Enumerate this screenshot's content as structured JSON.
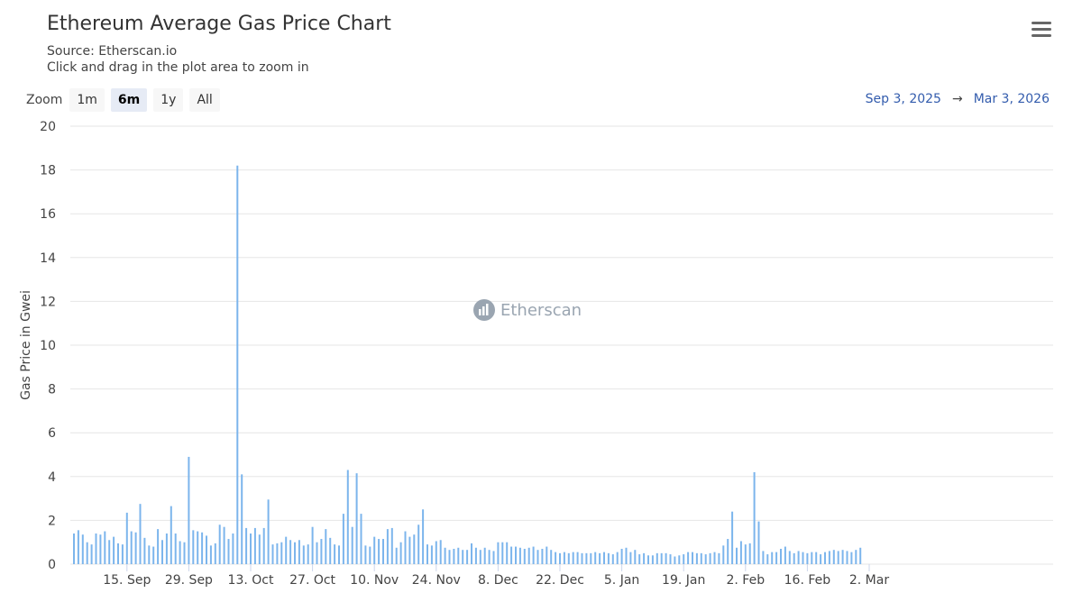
{
  "title": "Ethereum Average Gas Price Chart",
  "subtitle_source": "Source: Etherscan.io",
  "subtitle_hint": "Click and drag in the plot area to zoom in",
  "zoom": {
    "label": "Zoom",
    "buttons": [
      "1m",
      "6m",
      "1y",
      "All"
    ],
    "active": "6m"
  },
  "range": {
    "from": "Sep 3, 2025",
    "arrow": "→",
    "to": "Mar 3, 2026"
  },
  "watermark": "Etherscan",
  "colors": {
    "bar": "#7cb5ec",
    "grid": "#e6e6e6",
    "range_text": "#335cad"
  },
  "chart_data": {
    "type": "bar",
    "ylabel": "Gas Price in Gwei",
    "ylim": [
      0,
      20
    ],
    "yticks": [
      0,
      2,
      4,
      6,
      8,
      10,
      12,
      14,
      16,
      18,
      20
    ],
    "x_start": "2025-09-03",
    "xticks": [
      {
        "label": "15. Sep",
        "date": "2025-09-15"
      },
      {
        "label": "29. Sep",
        "date": "2025-09-29"
      },
      {
        "label": "13. Oct",
        "date": "2025-10-13"
      },
      {
        "label": "27. Oct",
        "date": "2025-10-27"
      },
      {
        "label": "10. Nov",
        "date": "2025-11-10"
      },
      {
        "label": "24. Nov",
        "date": "2025-11-24"
      },
      {
        "label": "8. Dec",
        "date": "2025-12-08"
      },
      {
        "label": "22. Dec",
        "date": "2025-12-22"
      },
      {
        "label": "5. Jan",
        "date": "2026-01-05"
      },
      {
        "label": "19. Jan",
        "date": "2026-01-19"
      },
      {
        "label": "2. Feb",
        "date": "2026-02-02"
      },
      {
        "label": "16. Feb",
        "date": "2026-02-16"
      },
      {
        "label": "2. Mar",
        "date": "2026-03-02"
      }
    ],
    "series": [
      {
        "values": [
          1.4,
          1.55,
          1.35,
          1.0,
          0.9,
          1.4,
          1.35,
          1.5,
          1.1,
          1.25,
          0.95,
          0.9,
          2.35,
          1.5,
          1.45,
          2.75,
          1.2,
          0.85,
          0.8,
          1.6,
          1.1,
          1.4,
          2.65,
          1.4,
          1.05,
          1.0,
          4.9,
          1.55,
          1.5,
          1.45,
          1.3,
          0.85,
          0.95,
          1.8,
          1.7,
          1.15,
          1.4,
          18.2,
          4.1,
          1.65,
          1.4,
          1.65,
          1.35,
          1.65,
          2.95,
          0.9,
          0.95,
          1.0,
          1.25,
          1.1,
          1.0,
          1.1,
          0.85,
          0.9,
          1.7,
          1.0,
          1.15,
          1.6,
          1.2,
          0.9,
          0.85,
          2.3,
          4.3,
          1.7,
          4.15,
          2.3,
          0.85,
          0.8,
          1.25,
          1.15,
          1.15,
          1.6,
          1.65,
          0.75,
          1.0,
          1.5,
          1.25,
          1.35,
          1.8,
          2.5,
          0.9,
          0.85,
          1.05,
          1.1,
          0.75,
          0.65,
          0.7,
          0.75,
          0.65,
          0.65,
          0.95,
          0.75,
          0.65,
          0.75,
          0.65,
          0.6,
          1.0,
          1.0,
          1.0,
          0.8,
          0.8,
          0.75,
          0.7,
          0.75,
          0.8,
          0.65,
          0.7,
          0.8,
          0.65,
          0.55,
          0.5,
          0.55,
          0.5,
          0.55,
          0.55,
          0.5,
          0.5,
          0.5,
          0.55,
          0.5,
          0.55,
          0.5,
          0.45,
          0.55,
          0.7,
          0.75,
          0.55,
          0.65,
          0.45,
          0.5,
          0.4,
          0.4,
          0.5,
          0.5,
          0.5,
          0.45,
          0.35,
          0.4,
          0.45,
          0.55,
          0.55,
          0.5,
          0.5,
          0.45,
          0.5,
          0.55,
          0.5,
          0.85,
          1.15,
          2.4,
          0.75,
          1.05,
          0.9,
          0.95,
          4.2,
          1.95,
          0.6,
          0.45,
          0.55,
          0.55,
          0.7,
          0.8,
          0.6,
          0.5,
          0.6,
          0.55,
          0.5,
          0.55,
          0.55,
          0.45,
          0.55,
          0.6,
          0.65,
          0.6,
          0.65,
          0.6,
          0.55,
          0.65,
          0.75
        ]
      }
    ]
  }
}
